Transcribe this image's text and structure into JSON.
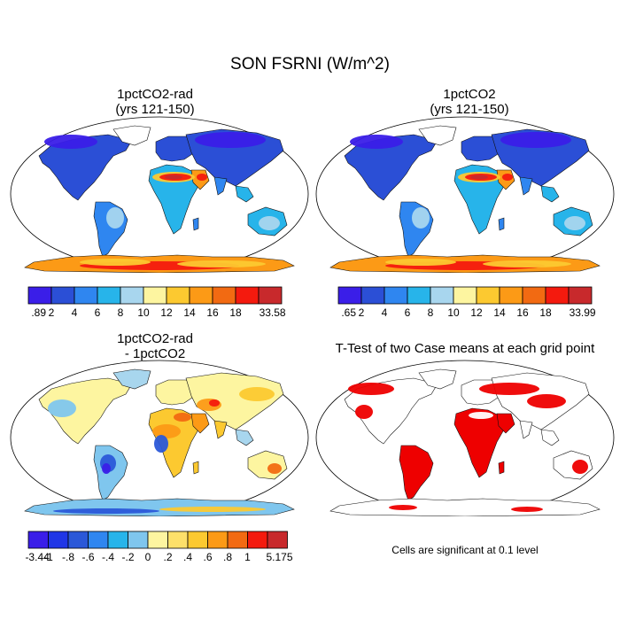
{
  "figure": {
    "title": "SON FSRNI (W/m^2)"
  },
  "panels": [
    {
      "id": "p1",
      "title_line1": "1pctCO2-rad",
      "title_line2": "(yrs 121-150)",
      "colorbar": {
        "labels": [
          ".89",
          "2",
          "4",
          "6",
          "8",
          "10",
          "12",
          "14",
          "16",
          "18",
          "33.58"
        ],
        "colors": [
          "#3a1ee8",
          "#2b4fd6",
          "#2f86f0",
          "#27b4ea",
          "#a8d6ee",
          "#fdf5a0",
          "#fcc930",
          "#fc9a16",
          "#f26a12",
          "#f41a0e",
          "#c8292c"
        ]
      }
    },
    {
      "id": "p2",
      "title_line1": "1pctCO2",
      "title_line2": "(yrs 121-150)",
      "colorbar": {
        "labels": [
          ".65",
          "2",
          "4",
          "6",
          "8",
          "10",
          "12",
          "14",
          "16",
          "18",
          "33.99"
        ],
        "colors": [
          "#3a1ee8",
          "#2b4fd6",
          "#2f86f0",
          "#27b4ea",
          "#a8d6ee",
          "#fdf5a0",
          "#fcc930",
          "#fc9a16",
          "#f26a12",
          "#f41a0e",
          "#c8292c"
        ]
      }
    },
    {
      "id": "p3",
      "title_line1": "1pctCO2-rad",
      "title_line2": "- 1pctCO2",
      "colorbar": {
        "labels": [
          "-3.44",
          "-1",
          "-.8",
          "-.6",
          "-.4",
          "-.2",
          "0",
          ".2",
          ".4",
          ".6",
          ".8",
          "1",
          "5.175"
        ],
        "colors": [
          "#3a1ee8",
          "#2036e6",
          "#2b58d8",
          "#2f86f0",
          "#27b4ea",
          "#7fc6ee",
          "#fdf5a0",
          "#fde06a",
          "#fcc930",
          "#fc9a16",
          "#f26a12",
          "#f41a0e",
          "#c8292c"
        ]
      }
    },
    {
      "id": "p4",
      "title_line1": "T-Test of two Case means at each grid point",
      "note": "Cells are significant at 0.1 level",
      "significance_color": "#ee0000"
    }
  ]
}
